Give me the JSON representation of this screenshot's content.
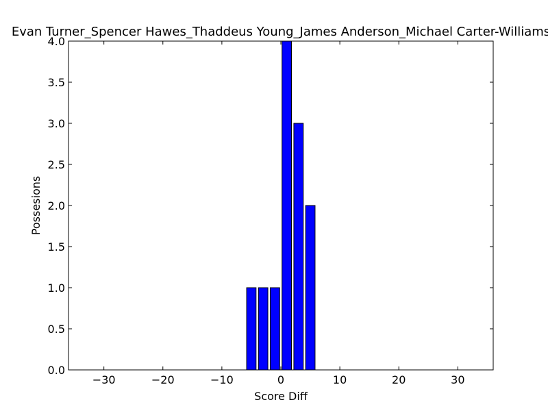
{
  "chart_data": {
    "type": "bar",
    "title": "Evan Turner_Spencer Hawes_Thaddeus Young_James Anderson_Michael Carter-Williams",
    "xlabel": "Score Diff",
    "ylabel": "Possesions",
    "xlim": [
      -36,
      36
    ],
    "ylim": [
      0,
      4
    ],
    "xticks": [
      -30,
      -20,
      -10,
      0,
      10,
      20,
      30
    ],
    "xtick_labels": [
      "−30",
      "−20",
      "−10",
      "0",
      "10",
      "20",
      "30"
    ],
    "yticks": [
      0,
      0.5,
      1,
      1.5,
      2,
      2.5,
      3,
      3.5,
      4
    ],
    "ytick_labels": [
      "0.0",
      "0.5",
      "1.0",
      "1.5",
      "2.0",
      "2.5",
      "3.0",
      "3.5",
      "4.0"
    ],
    "bar_width": 1.6,
    "x": [
      -35,
      -33,
      -31,
      -29,
      -27,
      -25,
      -23,
      -21,
      -19,
      -17,
      -15,
      -13,
      -11,
      -9,
      -7,
      -5,
      -3,
      -1,
      1,
      3,
      5,
      7,
      9,
      11,
      13,
      15,
      17,
      19,
      21,
      23,
      25,
      27,
      29,
      31,
      33,
      35
    ],
    "values": [
      0,
      0,
      0,
      0,
      0,
      0,
      0,
      0,
      0,
      0,
      0,
      0,
      0,
      0,
      0,
      1,
      1,
      1,
      4,
      3,
      2,
      0,
      0,
      0,
      0,
      0,
      0,
      0,
      0,
      0,
      0,
      0,
      0,
      0,
      0,
      0
    ],
    "bar_color": "#0000ff",
    "edge_color": "#000000",
    "grid": false
  }
}
